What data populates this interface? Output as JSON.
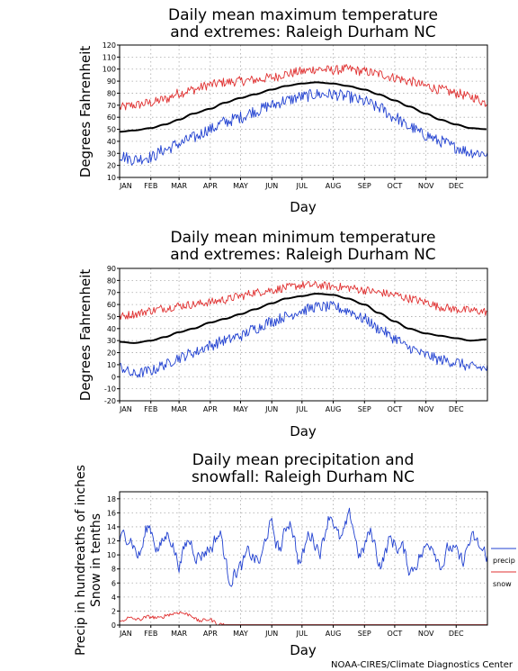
{
  "credit": "NOAA-CIRES/Climate Diagnostics Center",
  "colors": {
    "mean": "#000000",
    "max_extreme": "#e03030",
    "min_extreme": "#2040d0",
    "precip": "#2040d0",
    "snow": "#e03030",
    "grid": "#aaaaaa"
  },
  "chart_data": [
    {
      "type": "line",
      "title": "Daily mean maximum temperature and extremes: Raleigh Durham NC",
      "title_lines": [
        "Daily mean maximum temperature",
        "and extremes: Raleigh Durham NC"
      ],
      "xlabel": "Day",
      "ylabel": "Degrees Fahrenheit",
      "x_ticks": [
        "JAN",
        "FEB",
        "MAR",
        "APR",
        "MAY",
        "JUN",
        "JUL",
        "AUG",
        "SEP",
        "OCT",
        "NOV",
        "DEC"
      ],
      "y_ticks": [
        "10",
        "20",
        "30",
        "40",
        "50",
        "60",
        "70",
        "80",
        "90",
        "100",
        "110",
        "120"
      ],
      "ylim": [
        10,
        120
      ],
      "xlim": [
        1,
        366
      ],
      "grid": true,
      "series": [
        {
          "name": "",
          "role": "upper",
          "x": [
            1,
            15,
            32,
            46,
            60,
            74,
            91,
            105,
            121,
            135,
            152,
            166,
            182,
            196,
            213,
            227,
            244,
            258,
            274,
            288,
            305,
            319,
            335,
            349,
            366
          ],
          "y": [
            68,
            70,
            72,
            75,
            80,
            83,
            87,
            89,
            90,
            91,
            93,
            96,
            98,
            100,
            99,
            100,
            98,
            96,
            93,
            90,
            86,
            83,
            80,
            77,
            72
          ]
        },
        {
          "name": "",
          "role": "mean",
          "x": [
            1,
            15,
            32,
            46,
            60,
            74,
            91,
            105,
            121,
            135,
            152,
            166,
            182,
            196,
            213,
            227,
            244,
            258,
            274,
            288,
            305,
            319,
            335,
            349,
            366
          ],
          "y": [
            48,
            49,
            51,
            54,
            58,
            63,
            67,
            72,
            76,
            79,
            83,
            86,
            88,
            89,
            88,
            86,
            83,
            79,
            74,
            69,
            63,
            58,
            54,
            51,
            50
          ]
        },
        {
          "name": "",
          "role": "lower",
          "x": [
            1,
            15,
            32,
            46,
            60,
            74,
            91,
            105,
            121,
            135,
            152,
            166,
            182,
            196,
            213,
            227,
            244,
            258,
            274,
            288,
            305,
            319,
            335,
            349,
            366
          ],
          "y": [
            28,
            25,
            27,
            33,
            38,
            43,
            50,
            56,
            60,
            65,
            70,
            74,
            77,
            79,
            79,
            77,
            73,
            68,
            60,
            52,
            45,
            40,
            35,
            31,
            30
          ]
        }
      ]
    },
    {
      "type": "line",
      "title": "Daily mean minimum temperature and extremes: Raleigh Durham NC",
      "title_lines": [
        "Daily mean minimum temperature",
        "and extremes: Raleigh Durham NC"
      ],
      "xlabel": "Day",
      "ylabel": "Degrees Fahrenheit",
      "x_ticks": [
        "JAN",
        "FEB",
        "MAR",
        "APR",
        "MAY",
        "JUN",
        "JUL",
        "AUG",
        "SEP",
        "OCT",
        "NOV",
        "DEC"
      ],
      "y_ticks": [
        "-20",
        "-10",
        "0",
        "10",
        "20",
        "30",
        "40",
        "50",
        "60",
        "70",
        "80",
        "90"
      ],
      "ylim": [
        -20,
        90
      ],
      "xlim": [
        1,
        366
      ],
      "grid": true,
      "series": [
        {
          "name": "",
          "role": "upper",
          "x": [
            1,
            15,
            32,
            46,
            60,
            74,
            91,
            105,
            121,
            135,
            152,
            166,
            182,
            196,
            213,
            227,
            244,
            258,
            274,
            288,
            305,
            319,
            335,
            349,
            366
          ],
          "y": [
            50,
            52,
            55,
            57,
            59,
            60,
            62,
            64,
            67,
            70,
            72,
            74,
            76,
            76,
            75,
            74,
            72,
            70,
            68,
            65,
            62,
            58,
            56,
            55,
            54
          ]
        },
        {
          "name": "",
          "role": "mean",
          "x": [
            1,
            15,
            32,
            46,
            60,
            74,
            91,
            105,
            121,
            135,
            152,
            166,
            182,
            196,
            213,
            227,
            244,
            258,
            274,
            288,
            305,
            319,
            335,
            349,
            366
          ],
          "y": [
            29,
            28,
            30,
            33,
            37,
            40,
            45,
            48,
            52,
            56,
            61,
            65,
            67,
            69,
            68,
            65,
            60,
            53,
            46,
            40,
            36,
            34,
            32,
            30,
            31
          ]
        },
        {
          "name": "",
          "role": "lower",
          "x": [
            1,
            15,
            32,
            46,
            60,
            74,
            91,
            105,
            121,
            135,
            152,
            166,
            182,
            196,
            213,
            227,
            244,
            258,
            274,
            288,
            305,
            319,
            335,
            349,
            366
          ],
          "y": [
            8,
            2,
            5,
            10,
            16,
            20,
            26,
            30,
            34,
            40,
            46,
            50,
            55,
            58,
            58,
            55,
            48,
            40,
            32,
            24,
            18,
            14,
            12,
            8,
            7
          ]
        }
      ]
    },
    {
      "type": "line",
      "title": "Daily mean precipitation and snowfall: Raleigh Durham NC",
      "title_lines": [
        "Daily mean precipitation and",
        "snowfall: Raleigh Durham NC"
      ],
      "xlabel": "Day",
      "ylabel": "Precip in hundreaths of inches Snow in tenths",
      "ylabel_lines": [
        "Precip in hundreaths of inches",
        "Snow in tenths"
      ],
      "x_ticks": [
        "JAN",
        "FEB",
        "MAR",
        "APR",
        "MAY",
        "JUN",
        "JUL",
        "AUG",
        "SEP",
        "OCT",
        "NOV",
        "DEC"
      ],
      "y_ticks": [
        "0",
        "2",
        "4",
        "6",
        "8",
        "10",
        "12",
        "14",
        "16",
        "18"
      ],
      "ylim": [
        0,
        19
      ],
      "xlim": [
        1,
        366
      ],
      "grid": true,
      "legend": [
        "precip",
        "snow"
      ],
      "legend_position": "right",
      "series": [
        {
          "name": "precip",
          "role": "precip",
          "x": [
            1,
            10,
            20,
            30,
            40,
            50,
            60,
            70,
            80,
            90,
            100,
            110,
            120,
            130,
            140,
            150,
            160,
            170,
            180,
            190,
            200,
            210,
            220,
            230,
            240,
            250,
            260,
            270,
            280,
            290,
            300,
            310,
            320,
            330,
            340,
            350,
            366
          ],
          "y": [
            12,
            13,
            10,
            14,
            11,
            13,
            9,
            12,
            10,
            11,
            13,
            7,
            8,
            10,
            9,
            14,
            11,
            15,
            9,
            13,
            11,
            16,
            12,
            15,
            10,
            13,
            9,
            12,
            11,
            8,
            10,
            12,
            9,
            11,
            9,
            12,
            10
          ]
        },
        {
          "name": "snow",
          "role": "snow",
          "x": [
            1,
            10,
            20,
            30,
            40,
            50,
            60,
            70,
            80,
            90,
            100,
            130,
            200,
            300,
            366
          ],
          "y": [
            0.5,
            1.0,
            0.8,
            1.2,
            1.0,
            1.5,
            1.8,
            1.5,
            0.6,
            0.8,
            0.1,
            0,
            0,
            0,
            0.1
          ]
        }
      ]
    }
  ]
}
